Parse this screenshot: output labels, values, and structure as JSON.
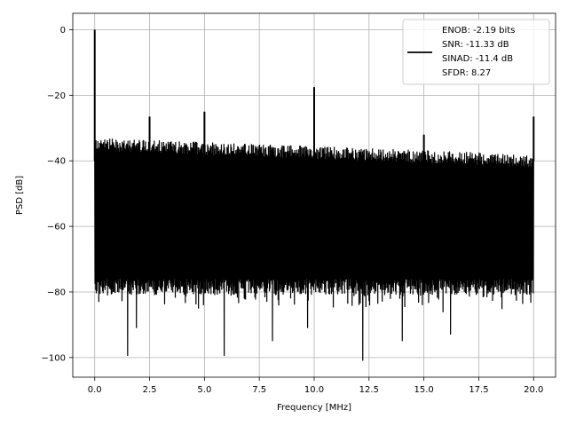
{
  "chart_data": {
    "type": "line",
    "xlabel": "Frequency [MHz]",
    "ylabel": "PSD [dB]",
    "xlim": [
      -1,
      21
    ],
    "ylim": [
      -106,
      5
    ],
    "x_ticks": [
      0.0,
      2.5,
      5.0,
      7.5,
      10.0,
      12.5,
      15.0,
      17.5,
      20.0
    ],
    "x_tick_labels": [
      "0.0",
      "2.5",
      "5.0",
      "7.5",
      "10.0",
      "12.5",
      "15.0",
      "17.5",
      "20.0"
    ],
    "y_ticks": [
      0,
      -20,
      -40,
      -60,
      -80,
      -100
    ],
    "y_tick_labels": [
      "0",
      "−20",
      "−40",
      "−60",
      "−80",
      "−100"
    ],
    "grid": true,
    "legend": {
      "placement": "top-right",
      "entries": [
        "ENOB: -2.19 bits",
        "SNR: -11.33 dB",
        "SINAD: -11.4 dB",
        "SFDR: 8.27"
      ]
    },
    "series": [
      {
        "color": "#000000",
        "x_range": [
          0,
          20
        ],
        "noise_band": {
          "upper_start": -33,
          "upper_end": -38,
          "lower": -76
        },
        "spikes": [
          {
            "x": 0.0,
            "y": 0
          },
          {
            "x": 2.5,
            "y": -26.5
          },
          {
            "x": 5.0,
            "y": -25
          },
          {
            "x": 10.0,
            "y": -17.5
          },
          {
            "x": 15.0,
            "y": -32
          },
          {
            "x": 20.0,
            "y": -26.5
          }
        ],
        "dips": [
          {
            "x": 1.5,
            "y": -99.5
          },
          {
            "x": 1.9,
            "y": -91
          },
          {
            "x": 5.9,
            "y": -99.5
          },
          {
            "x": 8.1,
            "y": -95
          },
          {
            "x": 9.7,
            "y": -91
          },
          {
            "x": 12.2,
            "y": -101
          },
          {
            "x": 14.0,
            "y": -95
          },
          {
            "x": 16.2,
            "y": -93
          }
        ]
      }
    ]
  }
}
